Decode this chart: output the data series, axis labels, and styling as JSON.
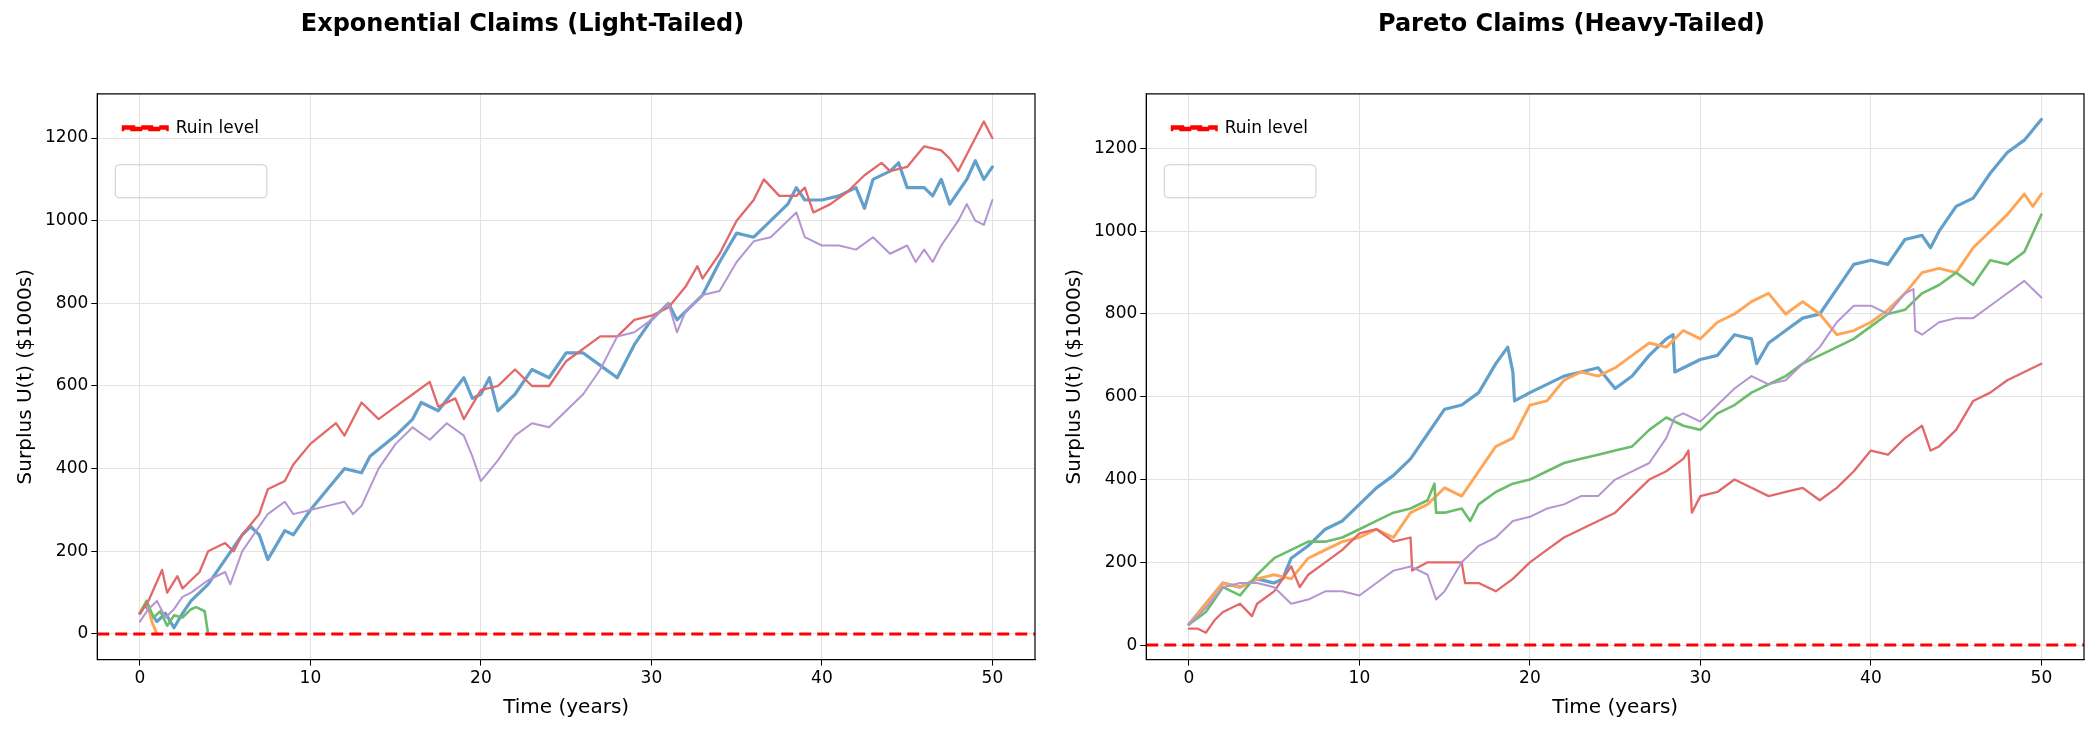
{
  "chart_data": [
    {
      "type": "line",
      "title": "Exponential Claims (Light-Tailed)",
      "xlabel": "Time (years)",
      "ylabel": "Surplus U(t) ($1000s)",
      "xlim": [
        -2.5,
        52.5
      ],
      "ylim": [
        -62,
        1307
      ],
      "xticks": [
        0,
        10,
        20,
        30,
        40,
        50
      ],
      "yticks": [
        0,
        200,
        400,
        600,
        800,
        1000,
        1200
      ],
      "grid": true,
      "legend": "top left",
      "marker": "none",
      "line_style": "solid",
      "ref_lines": [
        {
          "axis": "y",
          "value": 0,
          "label": "Ruin level",
          "color": "#ff0000",
          "line_style": "dashed"
        }
      ],
      "series": [
        {
          "color": "#62a0cb",
          "x": [
            0,
            0.3,
            1,
            1.5,
            2,
            2.5,
            3,
            4,
            5,
            6,
            6.5,
            7,
            7.5,
            8.5,
            9,
            10,
            11,
            12,
            13,
            13.5,
            15,
            16,
            16.5,
            17.5,
            19,
            19.5,
            20,
            20.5,
            21,
            22,
            23,
            24,
            25,
            26,
            27,
            28,
            29,
            30,
            31,
            31.5,
            33,
            34,
            35,
            36,
            37,
            38,
            38.5,
            39,
            40,
            41,
            42,
            42.5,
            43,
            44,
            44.5,
            45,
            46,
            46.5,
            47,
            47.5,
            48.5,
            49,
            49.5,
            50
          ],
          "values": [
            50,
            70,
            30,
            50,
            15,
            50,
            80,
            120,
            180,
            240,
            260,
            240,
            180,
            250,
            240,
            300,
            350,
            400,
            390,
            430,
            480,
            520,
            560,
            540,
            620,
            570,
            580,
            620,
            540,
            580,
            640,
            620,
            680,
            680,
            650,
            620,
            700,
            760,
            800,
            760,
            820,
            900,
            970,
            960,
            1000,
            1040,
            1080,
            1050,
            1050,
            1060,
            1080,
            1030,
            1100,
            1120,
            1140,
            1080,
            1080,
            1060,
            1100,
            1040,
            1100,
            1145,
            1100,
            1130
          ]
        },
        {
          "color": "#ffa556",
          "x": [
            0,
            0.4,
            0.7,
            1.0
          ],
          "values": [
            50,
            80,
            30,
            0
          ]
        },
        {
          "color": "#6bbc6b",
          "x": [
            0,
            0.4,
            0.8,
            1.2,
            1.6,
            2.0,
            2.5,
            3.0,
            3.3,
            3.8,
            4.0
          ],
          "values": [
            50,
            80,
            40,
            55,
            20,
            45,
            40,
            60,
            65,
            55,
            0
          ]
        },
        {
          "color": "#e26869",
          "x": [
            0,
            0.5,
            1.3,
            1.6,
            2.2,
            2.5,
            3.5,
            4,
            5,
            5.5,
            6,
            7,
            7.5,
            8.5,
            9,
            10,
            11.5,
            12,
            13,
            14,
            15,
            16,
            17,
            17.5,
            18.5,
            19,
            20,
            21,
            22,
            23,
            24,
            25,
            27,
            28,
            29,
            30,
            31,
            32,
            32.7,
            33,
            34,
            35,
            36,
            36.6,
            37.5,
            38.5,
            39,
            39.5,
            40.5,
            41.5,
            42.5,
            43.5,
            44,
            45,
            46,
            47,
            47.5,
            48,
            48.5,
            49.5,
            50
          ],
          "values": [
            50,
            80,
            155,
            100,
            140,
            110,
            150,
            200,
            220,
            200,
            240,
            290,
            350,
            370,
            410,
            460,
            510,
            480,
            560,
            520,
            550,
            580,
            610,
            550,
            570,
            520,
            590,
            600,
            640,
            600,
            600,
            660,
            720,
            720,
            760,
            770,
            790,
            840,
            890,
            860,
            920,
            1000,
            1050,
            1100,
            1060,
            1060,
            1080,
            1020,
            1040,
            1070,
            1110,
            1140,
            1120,
            1130,
            1180,
            1170,
            1150,
            1120,
            1160,
            1240,
            1200
          ]
        },
        {
          "color": "#b495d1",
          "x": [
            0,
            0.5,
            1,
            1.5,
            2,
            2.5,
            3,
            4,
            5,
            5.3,
            6,
            7,
            7.5,
            8.5,
            9,
            10,
            11,
            12,
            12.5,
            13,
            14,
            15,
            16,
            17,
            18,
            19,
            19.5,
            20,
            21,
            22,
            23,
            24,
            25,
            26,
            27,
            28,
            29,
            30,
            31,
            31.5,
            32,
            33,
            34,
            35,
            36,
            37,
            38,
            38.5,
            39,
            40,
            41,
            42,
            43,
            44,
            45,
            45.5,
            46,
            46.5,
            47,
            48,
            48.5,
            49,
            49.5,
            50
          ],
          "values": [
            30,
            60,
            80,
            40,
            60,
            90,
            100,
            130,
            150,
            120,
            200,
            260,
            290,
            320,
            290,
            300,
            310,
            320,
            290,
            310,
            400,
            460,
            500,
            470,
            510,
            480,
            430,
            370,
            420,
            480,
            510,
            500,
            540,
            580,
            640,
            720,
            730,
            760,
            800,
            730,
            780,
            820,
            830,
            900,
            950,
            960,
            1000,
            1020,
            960,
            940,
            940,
            930,
            960,
            920,
            940,
            900,
            930,
            900,
            940,
            1000,
            1040,
            1000,
            990,
            1050
          ]
        }
      ]
    },
    {
      "type": "line",
      "title": "Pareto Claims (Heavy-Tailed)",
      "xlabel": "Time (years)",
      "ylabel": "Surplus U(t) ($1000s)",
      "xlim": [
        -2.5,
        52.5
      ],
      "ylim": [
        -35,
        1332
      ],
      "xticks": [
        0,
        10,
        20,
        30,
        40,
        50
      ],
      "yticks": [
        0,
        200,
        400,
        600,
        800,
        1000,
        1200
      ],
      "grid": true,
      "legend": "top left",
      "marker": "none",
      "line_style": "solid",
      "ref_lines": [
        {
          "axis": "y",
          "value": 0,
          "label": "Ruin level",
          "color": "#ff0000",
          "line_style": "dashed"
        }
      ],
      "series": [
        {
          "color": "#62a0cb",
          "x": [
            0,
            1,
            2,
            3,
            4,
            5,
            5.5,
            6,
            7,
            8,
            9,
            10,
            11,
            12,
            13,
            14,
            15,
            16,
            17,
            18,
            18.7,
            19,
            19.1,
            20,
            21,
            22,
            23,
            24,
            25,
            26,
            27,
            28,
            28.4,
            28.5,
            30,
            31,
            32,
            33,
            33.3,
            34,
            35,
            36,
            37,
            38,
            39,
            40,
            41,
            42,
            43,
            43.5,
            44,
            45,
            46,
            47,
            48,
            49,
            50
          ],
          "values": [
            50,
            100,
            150,
            140,
            160,
            150,
            160,
            210,
            240,
            280,
            300,
            340,
            380,
            410,
            450,
            510,
            570,
            580,
            610,
            680,
            720,
            660,
            590,
            610,
            630,
            650,
            660,
            670,
            620,
            650,
            700,
            740,
            750,
            660,
            690,
            700,
            750,
            740,
            680,
            730,
            760,
            790,
            800,
            860,
            920,
            930,
            920,
            980,
            990,
            960,
            1000,
            1060,
            1080,
            1140,
            1190,
            1220,
            1270
          ]
        },
        {
          "color": "#ffa556",
          "x": [
            0,
            1,
            2,
            3,
            4,
            5,
            6,
            7,
            8,
            9,
            10,
            11,
            12,
            13,
            14,
            15,
            16,
            17,
            18,
            19,
            20,
            21,
            22,
            23,
            24,
            25,
            26,
            27,
            28,
            29,
            30,
            31,
            32,
            33,
            34,
            35,
            36,
            37,
            38,
            39,
            40,
            41,
            42,
            43,
            44,
            45,
            46,
            47,
            48,
            49,
            49.5,
            50
          ],
          "values": [
            50,
            100,
            150,
            140,
            160,
            170,
            160,
            210,
            230,
            250,
            260,
            280,
            260,
            320,
            340,
            380,
            360,
            420,
            480,
            500,
            580,
            590,
            640,
            660,
            650,
            670,
            700,
            730,
            720,
            760,
            740,
            780,
            800,
            830,
            850,
            800,
            830,
            800,
            750,
            760,
            780,
            810,
            850,
            900,
            910,
            900,
            960,
            1000,
            1040,
            1090,
            1060,
            1090
          ]
        },
        {
          "color": "#6bbc6b",
          "x": [
            0,
            1,
            2,
            3,
            4,
            5,
            6,
            7,
            8,
            9,
            10,
            11,
            12,
            13,
            14,
            14.4,
            14.5,
            15,
            16,
            16.5,
            17,
            18,
            19,
            20,
            21,
            22,
            23,
            24,
            25,
            26,
            27,
            28,
            29,
            30,
            31,
            32,
            33,
            34,
            35,
            36,
            37,
            38,
            39,
            40,
            41,
            42,
            43,
            44,
            45,
            46,
            47,
            48,
            49,
            50
          ],
          "values": [
            50,
            80,
            140,
            120,
            170,
            210,
            230,
            250,
            250,
            260,
            280,
            300,
            320,
            330,
            350,
            390,
            320,
            320,
            330,
            300,
            340,
            370,
            390,
            400,
            420,
            440,
            450,
            460,
            470,
            480,
            520,
            550,
            530,
            520,
            560,
            580,
            610,
            630,
            650,
            680,
            700,
            720,
            740,
            770,
            800,
            810,
            850,
            870,
            900,
            870,
            930,
            920,
            950,
            1040
          ]
        },
        {
          "color": "#e26869",
          "x": [
            0,
            0.5,
            1,
            1.5,
            2,
            3,
            3.7,
            4,
            5,
            6,
            6.5,
            7,
            8,
            9,
            10,
            11,
            12,
            13,
            13.1,
            14,
            15,
            16,
            16.2,
            17,
            18,
            19,
            20,
            21,
            22,
            23,
            24,
            25,
            26,
            27,
            28,
            29,
            29.3,
            29.5,
            30,
            31,
            32,
            33,
            34,
            35,
            36,
            37,
            38,
            39,
            40,
            41,
            42,
            43,
            43.5,
            44,
            45,
            46,
            47,
            48,
            49,
            50
          ],
          "values": [
            40,
            40,
            30,
            60,
            80,
            100,
            70,
            100,
            130,
            190,
            140,
            170,
            200,
            230,
            270,
            280,
            250,
            260,
            180,
            200,
            200,
            200,
            150,
            150,
            130,
            160,
            200,
            230,
            260,
            280,
            300,
            320,
            360,
            400,
            420,
            450,
            470,
            320,
            360,
            370,
            400,
            380,
            360,
            370,
            380,
            350,
            380,
            420,
            470,
            460,
            500,
            530,
            470,
            480,
            520,
            590,
            610,
            640,
            660,
            680
          ]
        },
        {
          "color": "#b495d1",
          "x": [
            0,
            1,
            2,
            3,
            4,
            5,
            6,
            7,
            8,
            9,
            10,
            11,
            12,
            13,
            14,
            14.5,
            15,
            16,
            17,
            18,
            19,
            20,
            21,
            22,
            23,
            24,
            25,
            26,
            27,
            28,
            28.5,
            29,
            30,
            31,
            32,
            33,
            34,
            35,
            36,
            37,
            38,
            39,
            40,
            41,
            42,
            42.5,
            42.6,
            43,
            44,
            45,
            46,
            47,
            48,
            49,
            50
          ],
          "values": [
            50,
            90,
            140,
            150,
            150,
            140,
            100,
            110,
            130,
            130,
            120,
            150,
            180,
            190,
            170,
            110,
            130,
            200,
            240,
            260,
            300,
            310,
            330,
            340,
            360,
            360,
            400,
            420,
            440,
            500,
            550,
            560,
            540,
            580,
            620,
            650,
            630,
            640,
            680,
            720,
            780,
            820,
            820,
            800,
            850,
            860,
            760,
            750,
            780,
            790,
            790,
            820,
            850,
            880,
            840
          ]
        }
      ]
    }
  ]
}
